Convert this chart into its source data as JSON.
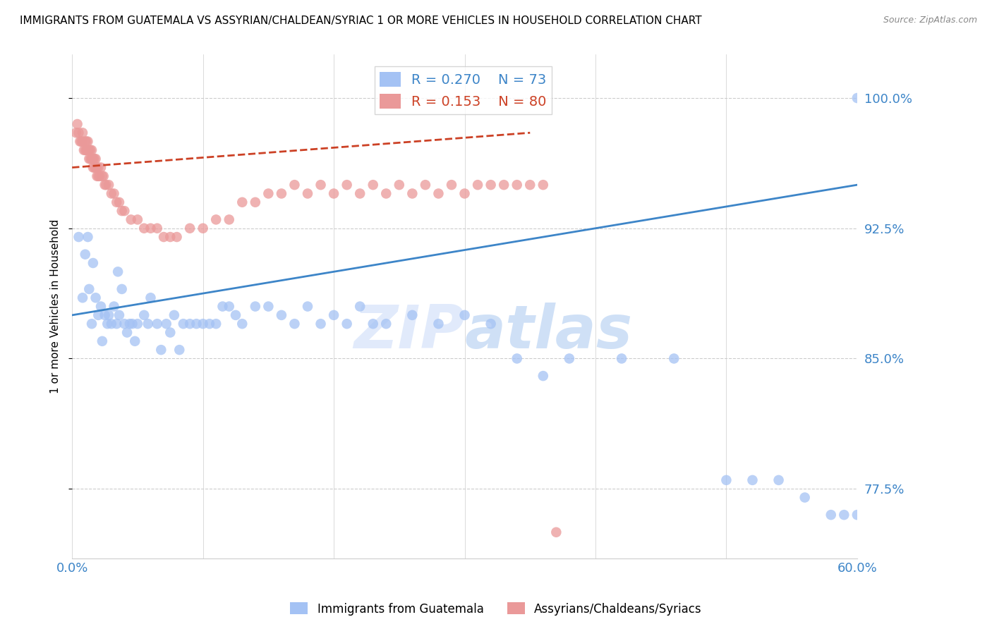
{
  "title": "IMMIGRANTS FROM GUATEMALA VS ASSYRIAN/CHALDEAN/SYRIAC 1 OR MORE VEHICLES IN HOUSEHOLD CORRELATION CHART",
  "source": "Source: ZipAtlas.com",
  "ylabel": "1 or more Vehicles in Household",
  "xlim": [
    0.0,
    0.6
  ],
  "ylim": [
    0.735,
    1.025
  ],
  "yticks": [
    0.775,
    0.85,
    0.925,
    1.0
  ],
  "ytick_labels": [
    "77.5%",
    "85.0%",
    "92.5%",
    "100.0%"
  ],
  "xticks": [
    0.0,
    0.1,
    0.2,
    0.3,
    0.4,
    0.5,
    0.6
  ],
  "blue_color": "#a4c2f4",
  "pink_color": "#ea9999",
  "blue_line_color": "#3d85c8",
  "pink_line_color": "#cc4125",
  "axis_label_color": "#3d85c8",
  "watermark_color": "#c9daf8",
  "legend_R_blue": "0.270",
  "legend_N_blue": "73",
  "legend_R_pink": "0.153",
  "legend_N_pink": "80",
  "legend_label_blue": "Immigrants from Guatemala",
  "legend_label_pink": "Assyrians/Chaldeans/Syriacs",
  "blue_x": [
    0.005,
    0.008,
    0.01,
    0.012,
    0.013,
    0.015,
    0.016,
    0.018,
    0.02,
    0.022,
    0.023,
    0.025,
    0.027,
    0.028,
    0.03,
    0.032,
    0.034,
    0.035,
    0.036,
    0.038,
    0.04,
    0.042,
    0.044,
    0.046,
    0.048,
    0.05,
    0.055,
    0.058,
    0.06,
    0.065,
    0.068,
    0.072,
    0.075,
    0.078,
    0.082,
    0.085,
    0.09,
    0.095,
    0.1,
    0.105,
    0.11,
    0.115,
    0.12,
    0.125,
    0.13,
    0.14,
    0.15,
    0.16,
    0.17,
    0.18,
    0.19,
    0.2,
    0.21,
    0.22,
    0.23,
    0.24,
    0.26,
    0.28,
    0.3,
    0.32,
    0.34,
    0.36,
    0.38,
    0.42,
    0.46,
    0.5,
    0.52,
    0.54,
    0.56,
    0.58,
    0.59,
    0.6,
    0.6
  ],
  "blue_y": [
    0.92,
    0.885,
    0.91,
    0.92,
    0.89,
    0.87,
    0.905,
    0.885,
    0.875,
    0.88,
    0.86,
    0.875,
    0.87,
    0.875,
    0.87,
    0.88,
    0.87,
    0.9,
    0.875,
    0.89,
    0.87,
    0.865,
    0.87,
    0.87,
    0.86,
    0.87,
    0.875,
    0.87,
    0.885,
    0.87,
    0.855,
    0.87,
    0.865,
    0.875,
    0.855,
    0.87,
    0.87,
    0.87,
    0.87,
    0.87,
    0.87,
    0.88,
    0.88,
    0.875,
    0.87,
    0.88,
    0.88,
    0.875,
    0.87,
    0.88,
    0.87,
    0.875,
    0.87,
    0.88,
    0.87,
    0.87,
    0.875,
    0.87,
    0.875,
    0.87,
    0.85,
    0.84,
    0.85,
    0.85,
    0.85,
    0.78,
    0.78,
    0.78,
    0.77,
    0.76,
    0.76,
    0.76,
    1.0
  ],
  "pink_x": [
    0.003,
    0.004,
    0.005,
    0.006,
    0.007,
    0.008,
    0.008,
    0.009,
    0.01,
    0.01,
    0.011,
    0.011,
    0.012,
    0.012,
    0.013,
    0.013,
    0.014,
    0.014,
    0.015,
    0.015,
    0.016,
    0.016,
    0.017,
    0.017,
    0.018,
    0.018,
    0.019,
    0.019,
    0.02,
    0.02,
    0.021,
    0.022,
    0.023,
    0.024,
    0.025,
    0.026,
    0.028,
    0.03,
    0.032,
    0.034,
    0.036,
    0.038,
    0.04,
    0.045,
    0.05,
    0.055,
    0.06,
    0.065,
    0.07,
    0.075,
    0.08,
    0.09,
    0.1,
    0.11,
    0.12,
    0.13,
    0.14,
    0.15,
    0.16,
    0.17,
    0.18,
    0.19,
    0.2,
    0.21,
    0.22,
    0.23,
    0.24,
    0.25,
    0.26,
    0.27,
    0.28,
    0.29,
    0.3,
    0.31,
    0.32,
    0.33,
    0.34,
    0.35,
    0.36,
    0.37
  ],
  "pink_y": [
    0.98,
    0.985,
    0.98,
    0.975,
    0.975,
    0.975,
    0.98,
    0.97,
    0.975,
    0.97,
    0.97,
    0.975,
    0.97,
    0.975,
    0.965,
    0.97,
    0.97,
    0.965,
    0.965,
    0.97,
    0.96,
    0.965,
    0.965,
    0.96,
    0.96,
    0.965,
    0.96,
    0.955,
    0.96,
    0.955,
    0.955,
    0.96,
    0.955,
    0.955,
    0.95,
    0.95,
    0.95,
    0.945,
    0.945,
    0.94,
    0.94,
    0.935,
    0.935,
    0.93,
    0.93,
    0.925,
    0.925,
    0.925,
    0.92,
    0.92,
    0.92,
    0.925,
    0.925,
    0.93,
    0.93,
    0.94,
    0.94,
    0.945,
    0.945,
    0.95,
    0.945,
    0.95,
    0.945,
    0.95,
    0.945,
    0.95,
    0.945,
    0.95,
    0.945,
    0.95,
    0.945,
    0.95,
    0.945,
    0.95,
    0.95,
    0.95,
    0.95,
    0.95,
    0.95,
    0.75
  ],
  "blue_trend_x": [
    0.0,
    0.6
  ],
  "blue_trend_y": [
    0.875,
    0.95
  ],
  "pink_trend_x": [
    0.0,
    0.35
  ],
  "pink_trend_y": [
    0.96,
    0.98
  ],
  "grid_color": "#cccccc",
  "background_color": "#ffffff"
}
